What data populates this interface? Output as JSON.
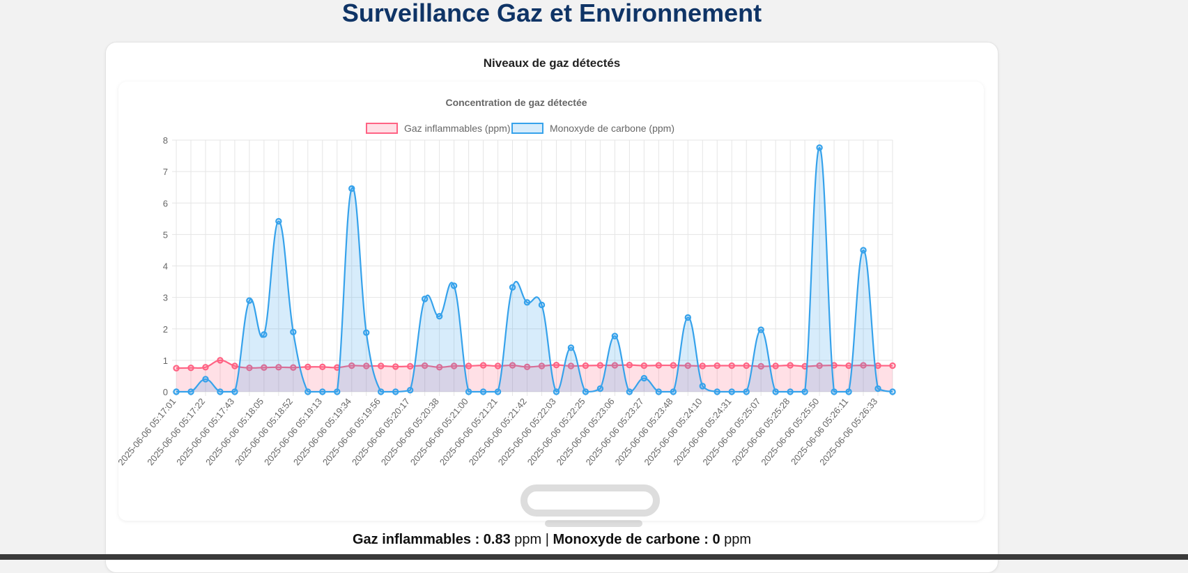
{
  "page": {
    "title": "Surveillance Gaz et Environnement"
  },
  "card": {
    "title": "Niveaux de gaz détectés"
  },
  "reading": {
    "flammable_label": "Gaz inflammables : ",
    "flammable_value": "0.83",
    "unit1": " ppm | ",
    "co_label": "Monoxyde de carbone : ",
    "co_value": "0",
    "unit2": " ppm"
  },
  "chart_data": {
    "type": "line",
    "title": "Concentration de gaz détectée",
    "ylim": [
      0,
      8
    ],
    "yticks": [
      0,
      1,
      2,
      3,
      4,
      5,
      6,
      7,
      8
    ],
    "grid": true,
    "legend_position": "top",
    "fill": true,
    "tick_labels": [
      "2025-06-06 05:17:01",
      "2025-06-06 05:17:22",
      "2025-06-06 05:17:43",
      "2025-06-06 05:18:05",
      "2025-06-06 05:18:52",
      "2025-06-06 05:19:13",
      "2025-06-06 05:19:34",
      "2025-06-06 05:19:56",
      "2025-06-06 05:20:17",
      "2025-06-06 05:20:38",
      "2025-06-06 05:21:00",
      "2025-06-06 05:21:21",
      "2025-06-06 05:21:42",
      "2025-06-06 05:22:03",
      "2025-06-06 05:22:25",
      "2025-06-06 05:23:06",
      "2025-06-06 05:23:27",
      "2025-06-06 05:23:48",
      "2025-06-06 05:24:10",
      "2025-06-06 05:24:31",
      "2025-06-06 05:25:07",
      "2025-06-06 05:25:28",
      "2025-06-06 05:25:50",
      "2025-06-06 05:26:11",
      "2025-06-06 05:26:33"
    ],
    "series": [
      {
        "name": "Gaz inflammables (ppm)",
        "color": "#ff6384",
        "fill": "rgba(255,99,132,0.2)",
        "values": [
          0.75,
          0.76,
          0.78,
          1.0,
          0.82,
          0.76,
          0.77,
          0.78,
          0.77,
          0.79,
          0.79,
          0.77,
          0.83,
          0.82,
          0.82,
          0.8,
          0.81,
          0.83,
          0.78,
          0.82,
          0.82,
          0.84,
          0.82,
          0.84,
          0.79,
          0.82,
          0.85,
          0.82,
          0.83,
          0.84,
          0.84,
          0.85,
          0.83,
          0.84,
          0.84,
          0.83,
          0.82,
          0.83,
          0.83,
          0.83,
          0.81,
          0.82,
          0.84,
          0.81,
          0.83,
          0.84,
          0.83,
          0.84,
          0.83,
          0.83
        ]
      },
      {
        "name": "Monoxyde de carbone (ppm)",
        "color": "#36a2eb",
        "fill": "rgba(54,162,235,0.2)",
        "values": [
          0,
          0,
          0.4,
          0,
          0,
          2.9,
          1.82,
          5.42,
          1.9,
          0,
          0,
          0,
          6.46,
          1.88,
          0,
          0,
          0.05,
          2.95,
          2.4,
          3.37,
          0,
          0,
          0,
          3.32,
          2.84,
          2.76,
          0,
          1.4,
          0,
          0.1,
          1.77,
          0,
          0.43,
          0,
          0,
          2.36,
          0.18,
          0,
          0,
          0,
          1.97,
          0,
          0,
          0,
          7.76,
          0,
          0,
          4.5,
          0.1,
          0
        ]
      }
    ]
  }
}
